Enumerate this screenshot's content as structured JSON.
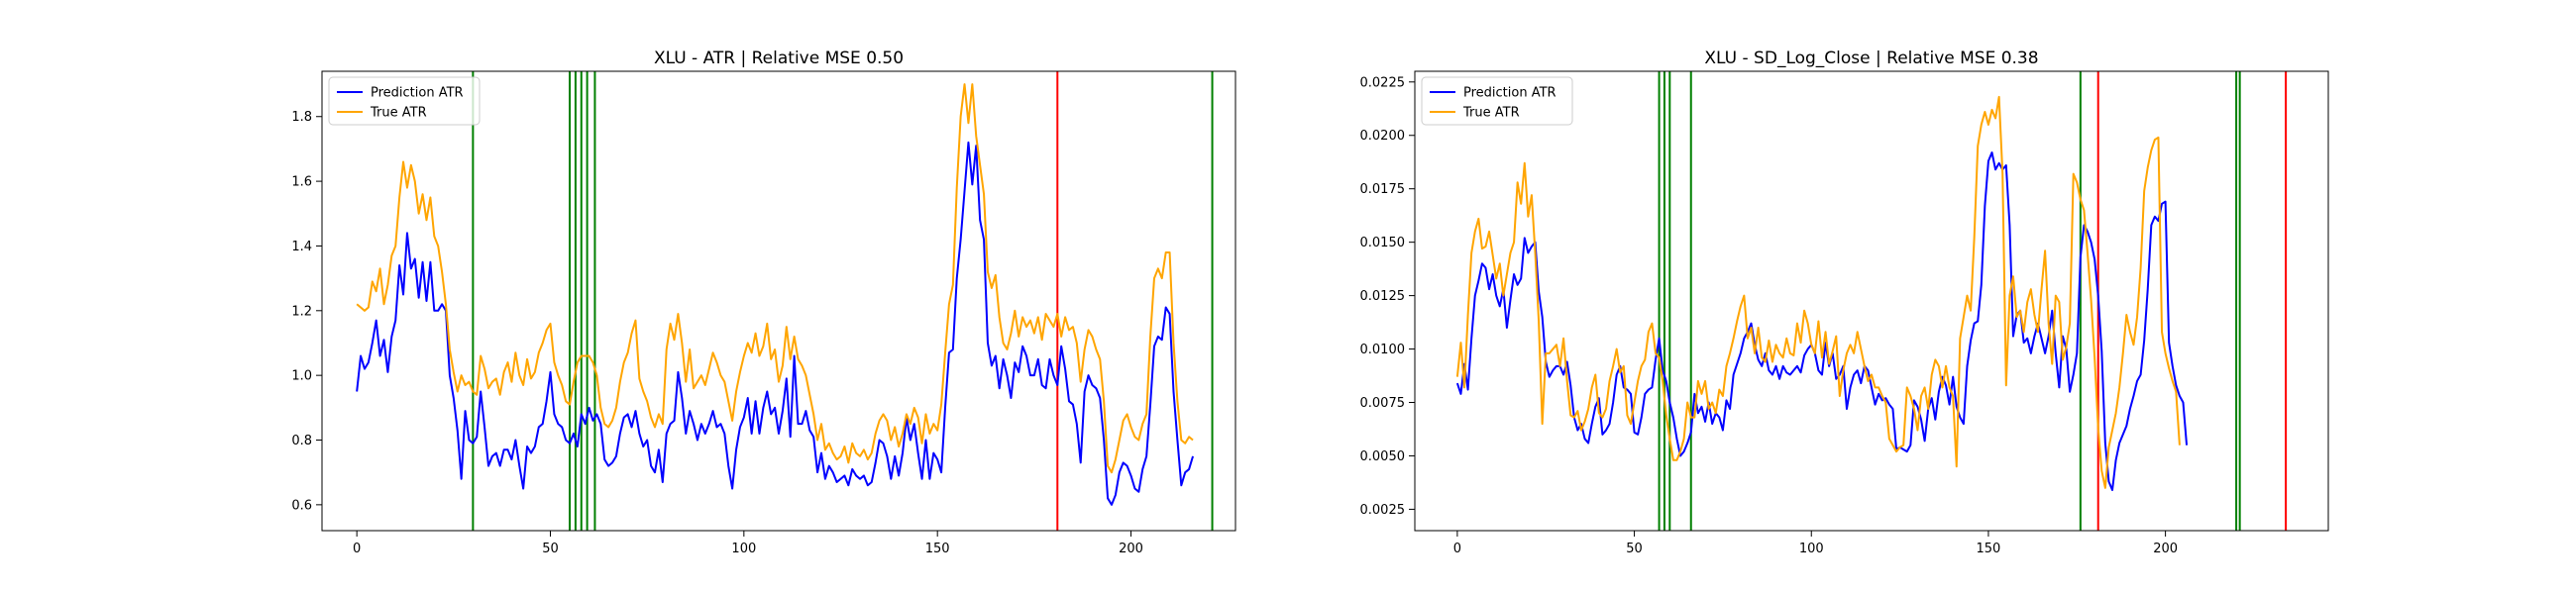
{
  "chart_data": [
    {
      "type": "line",
      "title": "XLU - ATR | Relative MSE 0.50",
      "xlabel": "",
      "ylabel": "",
      "xlim": [
        -9,
        227
      ],
      "ylim": [
        0.52,
        1.94
      ],
      "xticks": [
        0,
        50,
        100,
        150,
        200
      ],
      "yticks": [
        0.6,
        0.8,
        1.0,
        1.2,
        1.4,
        1.6,
        1.8
      ],
      "ytick_decimals": 1,
      "grid": false,
      "legend": "top-left",
      "series": [
        {
          "name": "Prediction ATR",
          "color": "#0000ff",
          "x_start": 0,
          "values": [
            0.95,
            1.06,
            1.02,
            1.04,
            1.1,
            1.17,
            1.06,
            1.11,
            1.01,
            1.12,
            1.17,
            1.34,
            1.25,
            1.44,
            1.33,
            1.36,
            1.24,
            1.35,
            1.23,
            1.35,
            1.2,
            1.2,
            1.22,
            1.2,
            1.0,
            0.93,
            0.83,
            0.68,
            0.89,
            0.8,
            0.79,
            0.81,
            0.95,
            0.84,
            0.72,
            0.75,
            0.76,
            0.72,
            0.77,
            0.77,
            0.74,
            0.8,
            0.72,
            0.65,
            0.78,
            0.76,
            0.78,
            0.84,
            0.85,
            0.92,
            1.01,
            0.88,
            0.85,
            0.84,
            0.8,
            0.79,
            0.82,
            0.78,
            0.88,
            0.85,
            0.9,
            0.86,
            0.88,
            0.85,
            0.74,
            0.72,
            0.73,
            0.75,
            0.82,
            0.87,
            0.88,
            0.84,
            0.89,
            0.82,
            0.78,
            0.8,
            0.72,
            0.7,
            0.77,
            0.67,
            0.82,
            0.85,
            0.86,
            1.01,
            0.93,
            0.82,
            0.89,
            0.85,
            0.8,
            0.85,
            0.82,
            0.85,
            0.89,
            0.84,
            0.85,
            0.82,
            0.72,
            0.65,
            0.77,
            0.84,
            0.87,
            0.93,
            0.82,
            0.92,
            0.82,
            0.9,
            0.95,
            0.88,
            0.9,
            0.82,
            0.89,
            0.99,
            0.81,
            1.06,
            0.85,
            0.85,
            0.89,
            0.83,
            0.81,
            0.7,
            0.76,
            0.68,
            0.72,
            0.7,
            0.67,
            0.68,
            0.69,
            0.66,
            0.71,
            0.69,
            0.68,
            0.69,
            0.66,
            0.67,
            0.73,
            0.8,
            0.79,
            0.75,
            0.68,
            0.75,
            0.69,
            0.76,
            0.87,
            0.8,
            0.85,
            0.76,
            0.68,
            0.8,
            0.68,
            0.76,
            0.74,
            0.7,
            0.9,
            1.07,
            1.08,
            1.3,
            1.42,
            1.57,
            1.72,
            1.59,
            1.71,
            1.48,
            1.42,
            1.1,
            1.03,
            1.06,
            0.96,
            1.05,
            1.0,
            0.93,
            1.04,
            1.01,
            1.09,
            1.06,
            1.0,
            1.0,
            1.05,
            0.97,
            0.96,
            1.05,
            1.0,
            0.97,
            1.09,
            1.02,
            0.92,
            0.91,
            0.85,
            0.73,
            0.95,
            1.0,
            0.97,
            0.96,
            0.93,
            0.8,
            0.62,
            0.6,
            0.63,
            0.7,
            0.73,
            0.72,
            0.69,
            0.65,
            0.64,
            0.71,
            0.75,
            0.91,
            1.09,
            1.12,
            1.11,
            1.21,
            1.19,
            0.95,
            0.8,
            0.66,
            0.7,
            0.71,
            0.75
          ]
        },
        {
          "name": "True ATR",
          "color": "#ffa500",
          "x_start": 0,
          "values": [
            1.22,
            1.21,
            1.2,
            1.21,
            1.29,
            1.26,
            1.33,
            1.22,
            1.28,
            1.37,
            1.4,
            1.55,
            1.66,
            1.58,
            1.65,
            1.6,
            1.5,
            1.56,
            1.48,
            1.55,
            1.43,
            1.4,
            1.32,
            1.22,
            1.08,
            1.01,
            0.95,
            1.0,
            0.97,
            0.98,
            0.95,
            0.94,
            1.06,
            1.02,
            0.96,
            0.98,
            0.99,
            0.94,
            1.01,
            1.04,
            0.98,
            1.07,
            1.0,
            0.97,
            1.05,
            0.99,
            1.01,
            1.07,
            1.1,
            1.14,
            1.16,
            1.04,
            1.0,
            0.97,
            0.92,
            0.91,
            0.98,
            1.04,
            1.06,
            1.06,
            1.06,
            1.04,
            1.0,
            0.9,
            0.85,
            0.84,
            0.86,
            0.9,
            0.98,
            1.04,
            1.07,
            1.13,
            1.17,
            0.99,
            0.95,
            0.92,
            0.87,
            0.84,
            0.88,
            0.85,
            1.08,
            1.16,
            1.11,
            1.19,
            1.1,
            0.98,
            1.08,
            0.96,
            0.98,
            1.0,
            0.97,
            1.02,
            1.07,
            1.04,
            1.0,
            0.98,
            0.92,
            0.86,
            0.95,
            1.01,
            1.06,
            1.1,
            1.07,
            1.13,
            1.06,
            1.09,
            1.16,
            1.05,
            1.08,
            0.98,
            1.03,
            1.15,
            1.05,
            1.12,
            1.05,
            1.03,
            1.0,
            0.94,
            0.88,
            0.8,
            0.85,
            0.77,
            0.79,
            0.76,
            0.74,
            0.75,
            0.78,
            0.73,
            0.79,
            0.76,
            0.75,
            0.77,
            0.74,
            0.76,
            0.82,
            0.86,
            0.88,
            0.86,
            0.8,
            0.84,
            0.78,
            0.82,
            0.88,
            0.85,
            0.9,
            0.87,
            0.79,
            0.88,
            0.82,
            0.85,
            0.83,
            0.91,
            1.07,
            1.22,
            1.28,
            1.58,
            1.8,
            1.9,
            1.78,
            1.9,
            1.74,
            1.65,
            1.56,
            1.32,
            1.27,
            1.31,
            1.18,
            1.1,
            1.08,
            1.13,
            1.2,
            1.12,
            1.18,
            1.15,
            1.17,
            1.13,
            1.18,
            1.11,
            1.19,
            1.17,
            1.15,
            1.19,
            1.12,
            1.18,
            1.14,
            1.15,
            1.1,
            0.98,
            1.08,
            1.14,
            1.12,
            1.08,
            1.05,
            0.92,
            0.72,
            0.7,
            0.74,
            0.8,
            0.86,
            0.88,
            0.84,
            0.81,
            0.8,
            0.85,
            0.88,
            1.12,
            1.3,
            1.33,
            1.3,
            1.38,
            1.38,
            1.1,
            0.92,
            0.8,
            0.79,
            0.81,
            0.8
          ]
        }
      ],
      "vlines": [
        {
          "x": 30,
          "color": "#008000"
        },
        {
          "x": 55,
          "color": "#008000"
        },
        {
          "x": 56.5,
          "color": "#008000"
        },
        {
          "x": 58,
          "color": "#008000"
        },
        {
          "x": 59.5,
          "color": "#008000"
        },
        {
          "x": 61.5,
          "color": "#008000"
        },
        {
          "x": 181,
          "color": "#ff0000"
        },
        {
          "x": 221,
          "color": "#008000"
        }
      ]
    },
    {
      "type": "line",
      "title": "XLU - SD_Log_Close | Relative MSE 0.38",
      "xlabel": "",
      "ylabel": "",
      "xlim": [
        -12,
        246
      ],
      "ylim": [
        0.0015,
        0.023
      ],
      "xticks": [
        0,
        50,
        100,
        150,
        200
      ],
      "yticks": [
        0.0025,
        0.005,
        0.0075,
        0.01,
        0.0125,
        0.015,
        0.0175,
        0.02,
        0.0225
      ],
      "ytick_decimals": 4,
      "grid": false,
      "legend": "top-left",
      "series": [
        {
          "name": "Prediction ATR",
          "color": "#0000ff",
          "x_start": 0,
          "values": [
            0.0084,
            0.0079,
            0.0093,
            0.0081,
            0.0105,
            0.0125,
            0.0132,
            0.014,
            0.0138,
            0.0128,
            0.0135,
            0.0125,
            0.012,
            0.0128,
            0.011,
            0.0123,
            0.0135,
            0.013,
            0.0133,
            0.0152,
            0.0145,
            0.0148,
            0.015,
            0.0127,
            0.0115,
            0.0094,
            0.0087,
            0.009,
            0.0092,
            0.0092,
            0.0088,
            0.0094,
            0.0083,
            0.0068,
            0.0062,
            0.0065,
            0.0058,
            0.0056,
            0.0065,
            0.0073,
            0.0077,
            0.006,
            0.0062,
            0.0065,
            0.0075,
            0.0088,
            0.0092,
            0.0082,
            0.0081,
            0.0079,
            0.0061,
            0.006,
            0.0068,
            0.0079,
            0.0081,
            0.0082,
            0.0095,
            0.0105,
            0.009,
            0.0085,
            0.0075,
            0.0068,
            0.0058,
            0.005,
            0.0052,
            0.0056,
            0.0061,
            0.0079,
            0.007,
            0.0073,
            0.0066,
            0.0075,
            0.0065,
            0.007,
            0.0068,
            0.0062,
            0.0076,
            0.0072,
            0.0088,
            0.0093,
            0.0098,
            0.0105,
            0.0108,
            0.0112,
            0.0102,
            0.0095,
            0.0092,
            0.0098,
            0.009,
            0.0088,
            0.0092,
            0.0086,
            0.0092,
            0.0089,
            0.0088,
            0.009,
            0.0092,
            0.0089,
            0.0097,
            0.01,
            0.0102,
            0.0098,
            0.009,
            0.0088,
            0.0103,
            0.0092,
            0.0098,
            0.0086,
            0.0088,
            0.0092,
            0.0072,
            0.0082,
            0.0088,
            0.009,
            0.0084,
            0.0092,
            0.009,
            0.0082,
            0.0074,
            0.0079,
            0.0076,
            0.0077,
            0.0074,
            0.0072,
            0.0053,
            0.0054,
            0.0053,
            0.0052,
            0.0055,
            0.0076,
            0.0073,
            0.0067,
            0.0057,
            0.0072,
            0.0077,
            0.0067,
            0.008,
            0.0087,
            0.0083,
            0.0074,
            0.0087,
            0.0073,
            0.0068,
            0.0065,
            0.0092,
            0.0104,
            0.0112,
            0.0113,
            0.013,
            0.0167,
            0.0188,
            0.0192,
            0.0184,
            0.0187,
            0.0184,
            0.0186,
            0.0158,
            0.0106,
            0.0116,
            0.0118,
            0.0103,
            0.0105,
            0.0098,
            0.0106,
            0.0112,
            0.0105,
            0.0098,
            0.0106,
            0.0118,
            0.0098,
            0.0082,
            0.0106,
            0.01,
            0.008,
            0.0088,
            0.0098,
            0.0143,
            0.0158,
            0.0155,
            0.015,
            0.0142,
            0.0125,
            0.0099,
            0.0056,
            0.0038,
            0.0034,
            0.0048,
            0.0056,
            0.006,
            0.0064,
            0.0072,
            0.0078,
            0.0085,
            0.0088,
            0.0104,
            0.0128,
            0.0158,
            0.0162,
            0.016,
            0.0168,
            0.0169,
            0.0103,
            0.0092,
            0.0083,
            0.0078,
            0.0075,
            0.0055
          ]
        },
        {
          "name": "True ATR",
          "color": "#ffa500",
          "x_start": 0,
          "values": [
            0.0087,
            0.0103,
            0.0082,
            0.0116,
            0.0145,
            0.0155,
            0.0161,
            0.0147,
            0.0148,
            0.0155,
            0.0144,
            0.0133,
            0.014,
            0.0125,
            0.0135,
            0.0145,
            0.015,
            0.0178,
            0.0168,
            0.0187,
            0.0162,
            0.0172,
            0.0145,
            0.0113,
            0.0065,
            0.0098,
            0.0098,
            0.01,
            0.0102,
            0.0092,
            0.0105,
            0.0085,
            0.0069,
            0.0068,
            0.0071,
            0.0062,
            0.0066,
            0.0072,
            0.0082,
            0.0088,
            0.007,
            0.0068,
            0.0072,
            0.0085,
            0.0092,
            0.01,
            0.0089,
            0.0092,
            0.0069,
            0.0065,
            0.0075,
            0.0085,
            0.0092,
            0.0095,
            0.0108,
            0.0112,
            0.0098,
            0.0096,
            0.0085,
            0.0069,
            0.0058,
            0.0048,
            0.0048,
            0.0052,
            0.0058,
            0.0075,
            0.0068,
            0.0068,
            0.0085,
            0.0079,
            0.0085,
            0.0072,
            0.0075,
            0.007,
            0.0081,
            0.0078,
            0.0092,
            0.0098,
            0.0105,
            0.0113,
            0.012,
            0.0125,
            0.0105,
            0.011,
            0.0098,
            0.011,
            0.0096,
            0.0094,
            0.0104,
            0.0094,
            0.0102,
            0.0098,
            0.0096,
            0.0105,
            0.0098,
            0.0097,
            0.0112,
            0.0103,
            0.0118,
            0.0112,
            0.0102,
            0.0098,
            0.0113,
            0.0096,
            0.0108,
            0.0093,
            0.0099,
            0.0106,
            0.0078,
            0.009,
            0.0098,
            0.0102,
            0.0098,
            0.0108,
            0.01,
            0.0092,
            0.0085,
            0.0088,
            0.0082,
            0.0082,
            0.0078,
            0.0075,
            0.0058,
            0.0055,
            0.0052,
            0.0054,
            0.0055,
            0.0082,
            0.0078,
            0.0072,
            0.0062,
            0.0078,
            0.0082,
            0.0072,
            0.0088,
            0.0095,
            0.0092,
            0.0082,
            0.0092,
            0.0082,
            0.0078,
            0.0045,
            0.0105,
            0.0115,
            0.0125,
            0.0118,
            0.0152,
            0.0195,
            0.0205,
            0.0211,
            0.0205,
            0.0212,
            0.0208,
            0.0218,
            0.0182,
            0.0083,
            0.0125,
            0.0134,
            0.0115,
            0.0118,
            0.0108,
            0.0122,
            0.0128,
            0.0116,
            0.0108,
            0.0128,
            0.0146,
            0.0112,
            0.0093,
            0.0125,
            0.0122,
            0.0095,
            0.0101,
            0.0112,
            0.0182,
            0.0178,
            0.017,
            0.0165,
            0.0145,
            0.0123,
            0.0096,
            0.0063,
            0.0043,
            0.0035,
            0.0054,
            0.0062,
            0.007,
            0.0082,
            0.0098,
            0.0116,
            0.0108,
            0.0102,
            0.0115,
            0.0138,
            0.0174,
            0.0185,
            0.0193,
            0.0198,
            0.0199,
            0.0108,
            0.0098,
            0.0091,
            0.0085,
            0.008,
            0.0055
          ]
        }
      ],
      "vlines": [
        {
          "x": 57,
          "color": "#008000"
        },
        {
          "x": 58.5,
          "color": "#008000"
        },
        {
          "x": 60,
          "color": "#008000"
        },
        {
          "x": 66,
          "color": "#008000"
        },
        {
          "x": 176,
          "color": "#008000"
        },
        {
          "x": 181,
          "color": "#ff0000"
        },
        {
          "x": 220,
          "color": "#008000"
        },
        {
          "x": 221,
          "color": "#008000"
        },
        {
          "x": 234,
          "color": "#ff0000"
        }
      ]
    }
  ]
}
